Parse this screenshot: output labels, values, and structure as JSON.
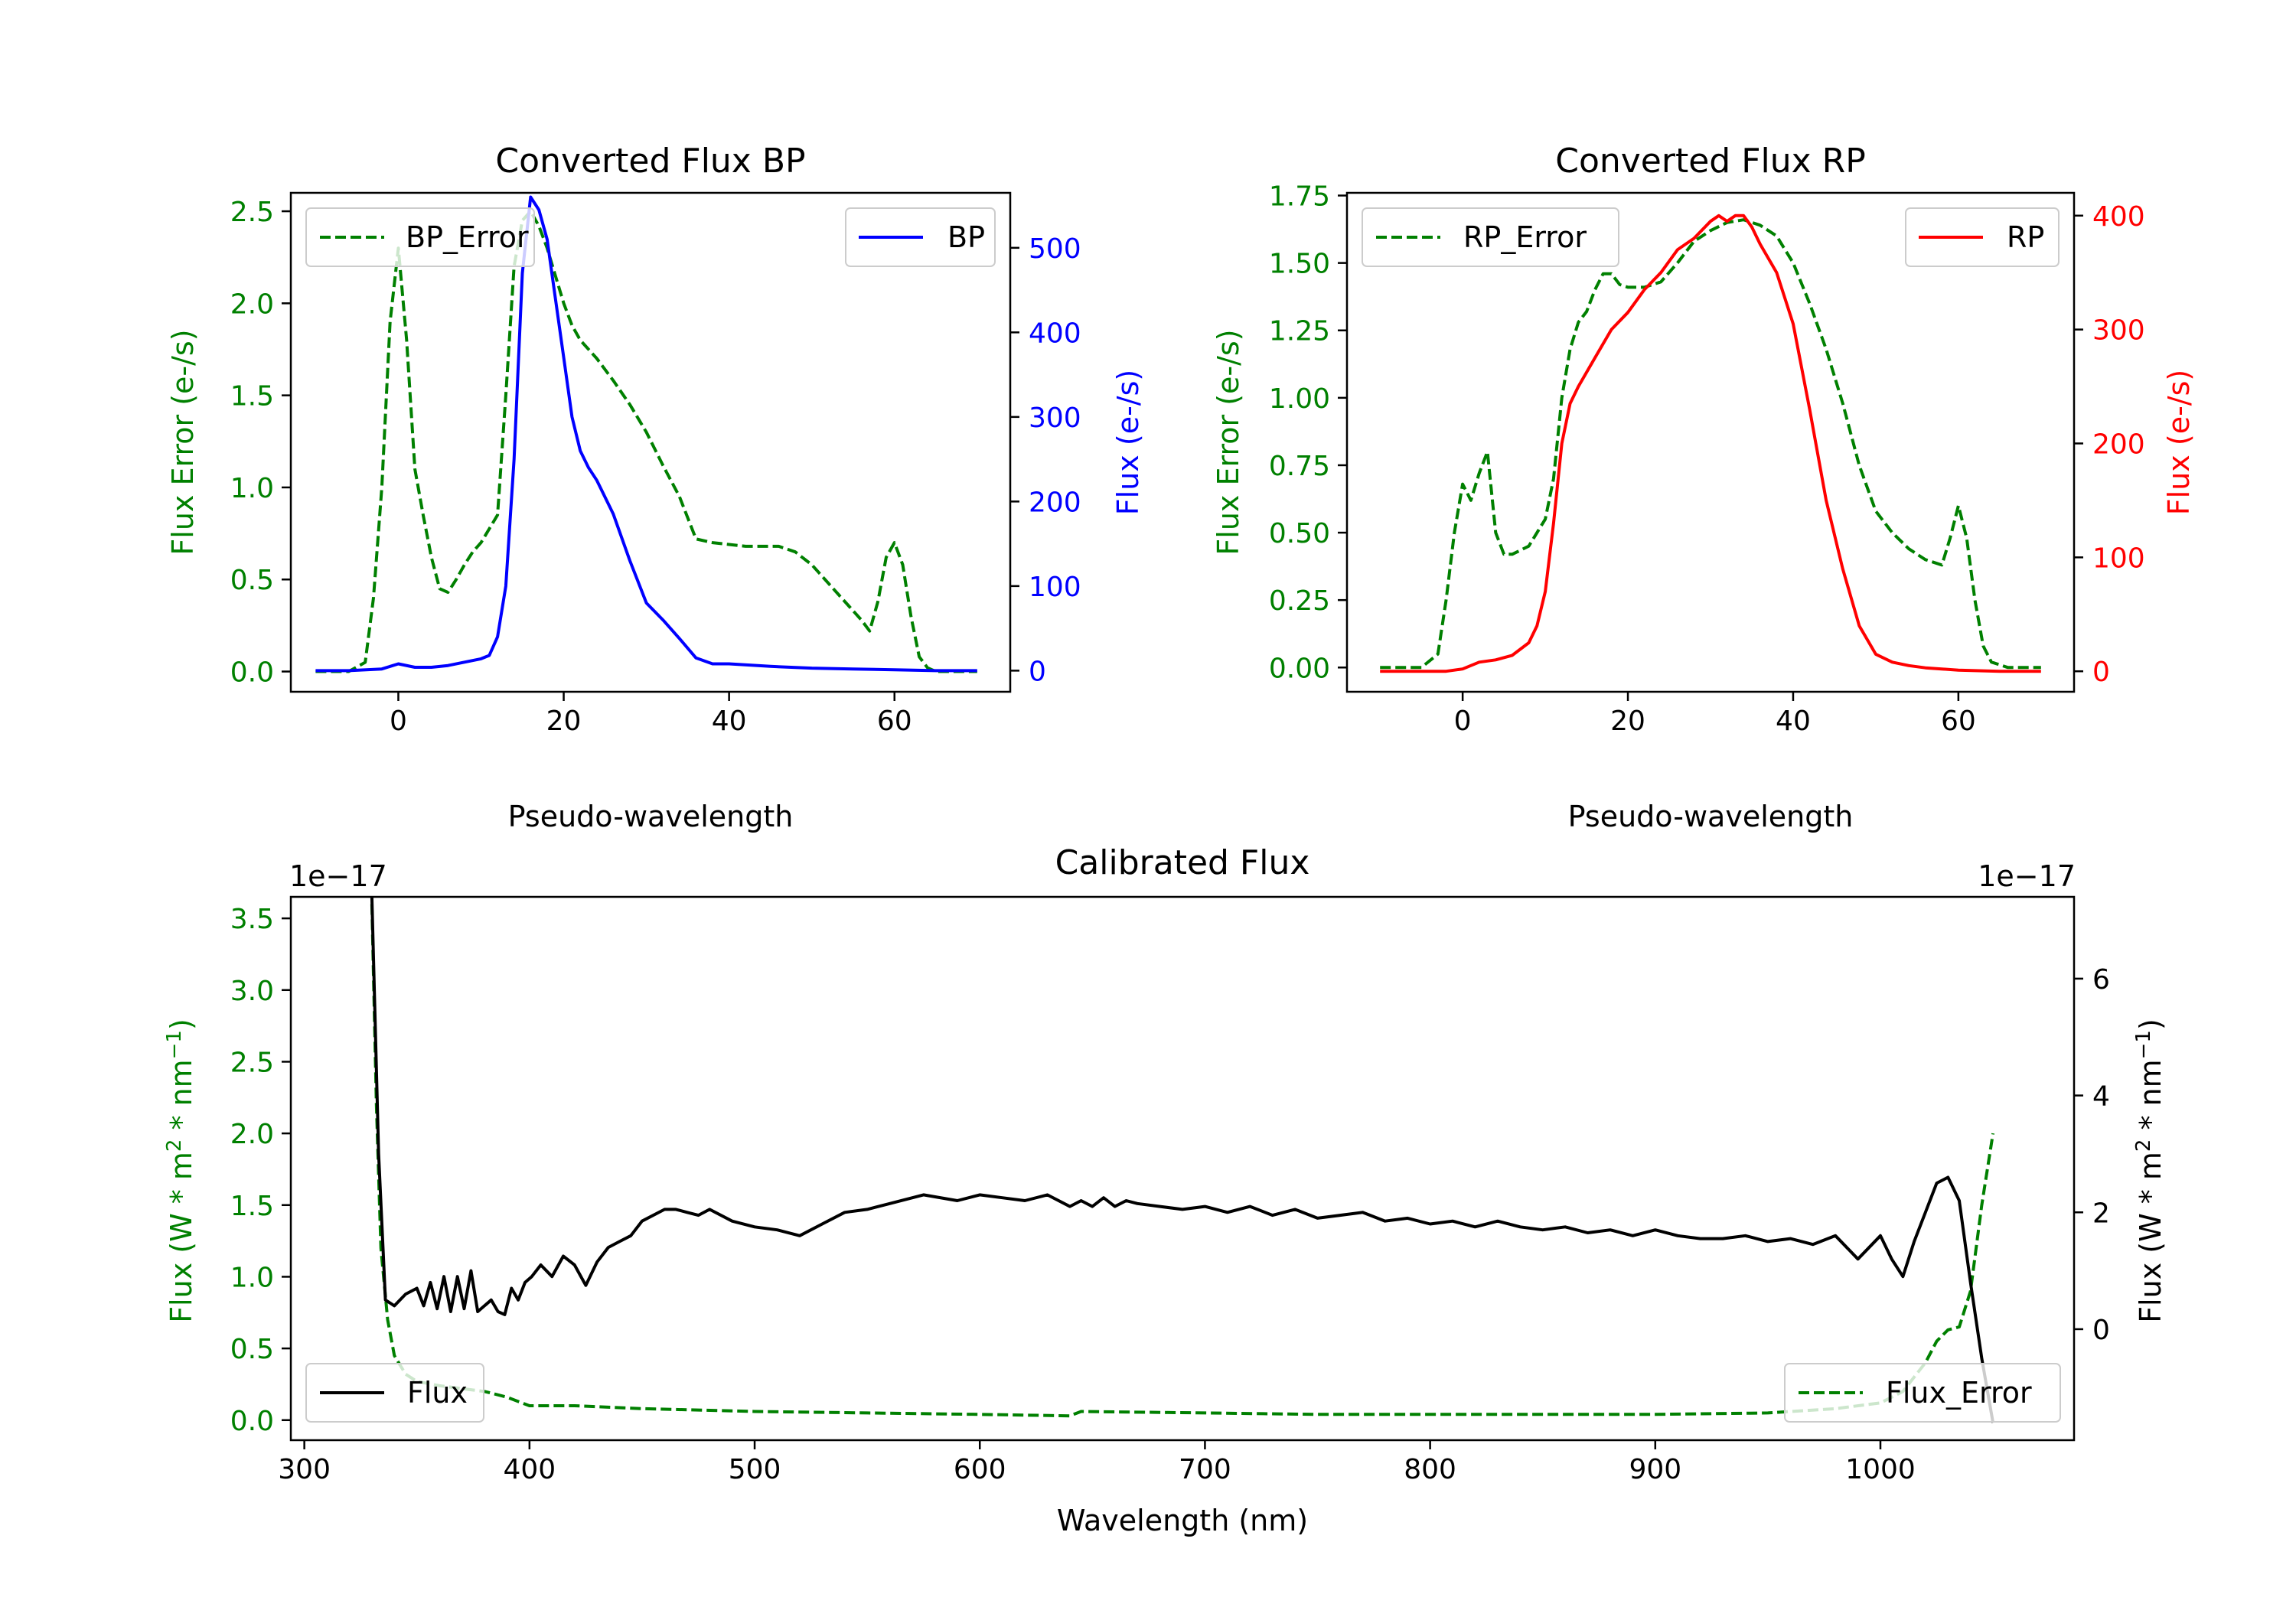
{
  "colors": {
    "bp": "#0000ff",
    "rp": "#ff0000",
    "error": "#008000",
    "flux": "#000000",
    "axis": "#000000"
  },
  "chart_data": [
    {
      "id": "bp",
      "type": "line",
      "title": "Converted Flux BP",
      "xlabel": "Pseudo-wavelength",
      "xlim": [
        -13,
        74
      ],
      "x_ticks": [
        0,
        20,
        40,
        60
      ],
      "left_axis": {
        "label": "Flux Error (e-/s)",
        "color": "#008000",
        "ylim": [
          -0.11,
          2.6
        ],
        "ticks": [
          0.0,
          0.5,
          1.0,
          1.5,
          2.0,
          2.5
        ],
        "tick_labels": [
          "0.0",
          "0.5",
          "1.0",
          "1.5",
          "2.0",
          "2.5"
        ]
      },
      "right_axis": {
        "label": "Flux (e-/s)",
        "color": "#0000ff",
        "ylim": [
          -25,
          565
        ],
        "ticks": [
          0,
          100,
          200,
          300,
          400,
          500
        ],
        "tick_labels": [
          "0",
          "100",
          "200",
          "300",
          "400",
          "500"
        ]
      },
      "series": [
        {
          "name": "BP_Error",
          "axis": "left",
          "style": "dashed",
          "color": "#008000",
          "x": [
            -10,
            -6,
            -4,
            -3,
            -2,
            -1,
            0,
            1,
            2,
            3,
            4,
            5,
            6,
            7,
            8,
            9,
            10,
            12,
            13,
            14,
            15,
            16,
            17,
            18,
            19,
            20,
            21,
            22,
            24,
            26,
            28,
            30,
            32,
            34,
            36,
            38,
            40,
            42,
            44,
            46,
            48,
            50,
            52,
            54,
            56,
            57,
            58,
            59,
            60,
            61,
            62,
            63,
            64,
            65,
            66,
            70
          ],
          "values": [
            0.0,
            0.0,
            0.05,
            0.4,
            1.0,
            1.9,
            2.3,
            1.8,
            1.1,
            0.85,
            0.62,
            0.45,
            0.43,
            0.5,
            0.58,
            0.65,
            0.7,
            0.85,
            1.5,
            2.2,
            2.45,
            2.5,
            2.42,
            2.3,
            2.15,
            2.0,
            1.88,
            1.8,
            1.7,
            1.58,
            1.45,
            1.3,
            1.12,
            0.95,
            0.72,
            0.7,
            0.69,
            0.68,
            0.68,
            0.68,
            0.65,
            0.58,
            0.48,
            0.38,
            0.28,
            0.22,
            0.38,
            0.62,
            0.7,
            0.58,
            0.3,
            0.08,
            0.02,
            0.0,
            0.0,
            0.0
          ]
        },
        {
          "name": "BP",
          "axis": "right",
          "style": "solid",
          "color": "#0000ff",
          "x": [
            -10,
            -6,
            -2,
            0,
            2,
            4,
            6,
            8,
            10,
            11,
            12,
            13,
            14,
            15,
            16,
            17,
            18,
            19,
            20,
            21,
            22,
            23,
            24,
            25,
            26,
            28,
            30,
            32,
            34,
            36,
            38,
            40,
            45,
            50,
            55,
            60,
            65,
            70
          ],
          "values": [
            0,
            0,
            2,
            8,
            4,
            4,
            6,
            10,
            14,
            18,
            40,
            100,
            250,
            470,
            560,
            545,
            510,
            440,
            370,
            300,
            260,
            240,
            225,
            205,
            185,
            130,
            80,
            60,
            38,
            15,
            8,
            8,
            5,
            3,
            2,
            1,
            0,
            0
          ]
        }
      ],
      "legends": [
        {
          "position": "upper-left",
          "entries": [
            "BP_Error"
          ]
        },
        {
          "position": "upper-right",
          "entries": [
            "BP"
          ]
        }
      ]
    },
    {
      "id": "rp",
      "type": "line",
      "title": "Converted Flux RP",
      "xlabel": "Pseudo-wavelength",
      "xlim": [
        -14,
        74
      ],
      "x_ticks": [
        0,
        20,
        40,
        60
      ],
      "left_axis": {
        "label": "Flux Error (e-/s)",
        "color": "#008000",
        "ylim": [
          -0.09,
          1.76
        ],
        "ticks": [
          0.0,
          0.25,
          0.5,
          0.75,
          1.0,
          1.25,
          1.5,
          1.75
        ],
        "tick_labels": [
          "0.00",
          "0.25",
          "0.50",
          "0.75",
          "1.00",
          "1.25",
          "1.50",
          "1.75"
        ]
      },
      "right_axis": {
        "label": "Flux (e-/s)",
        "color": "#ff0000",
        "ylim": [
          -18,
          420
        ],
        "ticks": [
          0,
          100,
          200,
          300,
          400
        ],
        "tick_labels": [
          "0",
          "100",
          "200",
          "300",
          "400"
        ]
      },
      "series": [
        {
          "name": "RP_Error",
          "axis": "left",
          "style": "dashed",
          "color": "#008000",
          "x": [
            -10,
            -5,
            -3,
            -2,
            -1,
            0,
            1,
            2,
            3,
            4,
            5,
            6,
            8,
            10,
            11,
            12,
            13,
            14,
            15,
            16,
            17,
            18,
            19,
            20,
            22,
            24,
            26,
            28,
            30,
            32,
            34,
            36,
            38,
            40,
            42,
            44,
            46,
            48,
            50,
            52,
            54,
            56,
            57,
            58,
            59,
            60,
            61,
            62,
            63,
            64,
            66,
            70
          ],
          "values": [
            0.0,
            0.0,
            0.05,
            0.25,
            0.5,
            0.68,
            0.62,
            0.72,
            0.8,
            0.5,
            0.42,
            0.42,
            0.45,
            0.55,
            0.7,
            1.0,
            1.18,
            1.28,
            1.32,
            1.4,
            1.46,
            1.46,
            1.42,
            1.41,
            1.41,
            1.43,
            1.5,
            1.58,
            1.62,
            1.65,
            1.66,
            1.64,
            1.6,
            1.5,
            1.35,
            1.18,
            0.98,
            0.75,
            0.58,
            0.5,
            0.44,
            0.4,
            0.39,
            0.38,
            0.48,
            0.6,
            0.48,
            0.25,
            0.08,
            0.02,
            0.0,
            0.0
          ]
        },
        {
          "name": "RP",
          "axis": "right",
          "style": "solid",
          "color": "#ff0000",
          "x": [
            -10,
            -4,
            -2,
            0,
            2,
            4,
            6,
            8,
            9,
            10,
            11,
            12,
            13,
            14,
            16,
            18,
            20,
            22,
            24,
            26,
            28,
            30,
            31,
            32,
            33,
            34,
            35,
            36,
            38,
            40,
            42,
            44,
            46,
            48,
            50,
            52,
            54,
            56,
            58,
            60,
            65,
            70
          ],
          "values": [
            0,
            0,
            0,
            2,
            8,
            10,
            14,
            25,
            40,
            70,
            130,
            200,
            235,
            250,
            275,
            300,
            315,
            335,
            350,
            370,
            380,
            395,
            400,
            395,
            400,
            400,
            390,
            375,
            350,
            305,
            230,
            150,
            90,
            40,
            15,
            8,
            5,
            3,
            2,
            1,
            0,
            0
          ]
        }
      ],
      "legends": [
        {
          "position": "upper-left",
          "entries": [
            "RP_Error"
          ]
        },
        {
          "position": "upper-right",
          "entries": [
            "RP"
          ]
        }
      ]
    },
    {
      "id": "cal",
      "type": "line",
      "title": "Calibrated Flux",
      "xlabel": "Wavelength (nm)",
      "xlim": [
        294,
        1086
      ],
      "x_ticks": [
        300,
        400,
        500,
        600,
        700,
        800,
        900,
        1000
      ],
      "left_axis": {
        "label": "Flux (W * m2 * nm-1)",
        "label_parts": [
          "Flux (W * m",
          "2",
          " * nm",
          "−1",
          ")"
        ],
        "color": "#008000",
        "ylim": [
          -0.14,
          3.65
        ],
        "ticks": [
          0.0,
          0.5,
          1.0,
          1.5,
          2.0,
          2.5,
          3.0,
          3.5
        ],
        "tick_labels": [
          "0.0",
          "0.5",
          "1.0",
          "1.5",
          "2.0",
          "2.5",
          "3.0",
          "3.5"
        ],
        "offset_label": "1e−17"
      },
      "right_axis": {
        "label": "Flux (W * m2 * nm-1)",
        "label_parts": [
          "Flux (W * m",
          "2",
          " * nm",
          "−1",
          ")"
        ],
        "color": "#000000",
        "ylim": [
          -1.9,
          7.4
        ],
        "ticks": [
          0,
          2,
          4,
          6
        ],
        "tick_labels": [
          "0",
          "2",
          "4",
          "6"
        ],
        "offset_label": "1e−17"
      },
      "series": [
        {
          "name": "Flux_Error",
          "axis": "left",
          "style": "dashed",
          "color": "#008000",
          "x": [
            330,
            332,
            334,
            337,
            340,
            345,
            350,
            360,
            370,
            380,
            390,
            400,
            420,
            450,
            500,
            550,
            600,
            640,
            645,
            700,
            750,
            800,
            850,
            900,
            950,
            980,
            1000,
            1010,
            1020,
            1025,
            1030,
            1035,
            1040,
            1045,
            1050
          ],
          "values": [
            3.6,
            2.2,
            1.2,
            0.7,
            0.45,
            0.32,
            0.27,
            0.24,
            0.22,
            0.2,
            0.16,
            0.1,
            0.1,
            0.08,
            0.06,
            0.05,
            0.04,
            0.03,
            0.06,
            0.05,
            0.04,
            0.04,
            0.04,
            0.04,
            0.05,
            0.08,
            0.12,
            0.2,
            0.4,
            0.55,
            0.63,
            0.65,
            0.9,
            1.5,
            2.0
          ]
        },
        {
          "name": "Flux",
          "axis": "right",
          "style": "solid",
          "color": "#000000",
          "x": [
            330,
            333,
            336,
            340,
            345,
            350,
            353,
            356,
            359,
            362,
            365,
            368,
            371,
            374,
            377,
            380,
            383,
            386,
            389,
            392,
            395,
            398,
            401,
            405,
            410,
            415,
            420,
            425,
            430,
            435,
            440,
            445,
            450,
            460,
            465,
            470,
            475,
            480,
            490,
            500,
            510,
            520,
            530,
            540,
            550,
            560,
            575,
            590,
            600,
            610,
            620,
            630,
            640,
            645,
            650,
            655,
            660,
            665,
            670,
            680,
            690,
            700,
            710,
            720,
            730,
            740,
            750,
            760,
            770,
            780,
            790,
            800,
            810,
            820,
            830,
            840,
            850,
            860,
            870,
            880,
            890,
            900,
            910,
            920,
            930,
            940,
            950,
            960,
            970,
            980,
            990,
            1000,
            1005,
            1010,
            1015,
            1020,
            1025,
            1030,
            1035,
            1040,
            1045,
            1050
          ],
          "values": [
            7.4,
            3.0,
            0.5,
            0.4,
            0.6,
            0.7,
            0.4,
            0.8,
            0.35,
            0.9,
            0.3,
            0.9,
            0.35,
            1.0,
            0.3,
            0.4,
            0.5,
            0.3,
            0.25,
            0.7,
            0.5,
            0.8,
            0.9,
            1.1,
            0.9,
            1.25,
            1.1,
            0.75,
            1.15,
            1.4,
            1.5,
            1.6,
            1.85,
            2.05,
            2.05,
            2.0,
            1.95,
            2.05,
            1.85,
            1.75,
            1.7,
            1.6,
            1.8,
            2.0,
            2.05,
            2.15,
            2.3,
            2.2,
            2.3,
            2.25,
            2.2,
            2.3,
            2.1,
            2.2,
            2.1,
            2.25,
            2.1,
            2.2,
            2.15,
            2.1,
            2.05,
            2.1,
            2.0,
            2.1,
            1.95,
            2.05,
            1.9,
            1.95,
            2.0,
            1.85,
            1.9,
            1.8,
            1.85,
            1.75,
            1.85,
            1.75,
            1.7,
            1.75,
            1.65,
            1.7,
            1.6,
            1.7,
            1.6,
            1.55,
            1.55,
            1.6,
            1.5,
            1.55,
            1.45,
            1.6,
            1.2,
            1.6,
            1.2,
            0.9,
            1.5,
            2.0,
            2.5,
            2.6,
            2.2,
            0.8,
            -0.5,
            -1.6
          ]
        }
      ],
      "legends": [
        {
          "position": "lower-left",
          "entries": [
            "Flux"
          ]
        },
        {
          "position": "lower-right",
          "entries": [
            "Flux_Error"
          ]
        }
      ]
    }
  ]
}
